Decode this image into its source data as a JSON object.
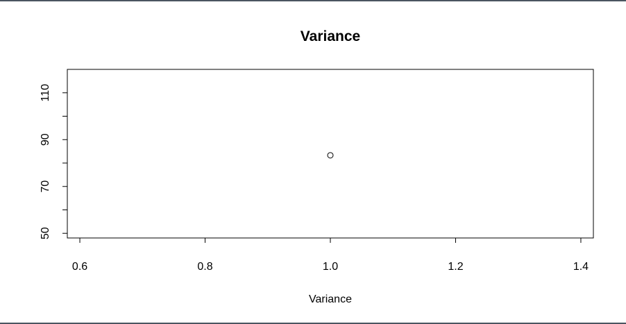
{
  "chart_data": {
    "type": "scatter",
    "title": "Variance",
    "xlabel": "Variance",
    "ylabel": "",
    "xlim": [
      0.58,
      1.42
    ],
    "ylim": [
      48,
      120
    ],
    "x_ticks": [
      0.6,
      0.8,
      1.0,
      1.2,
      1.4
    ],
    "x_tick_labels": [
      "0.6",
      "0.8",
      "1.0",
      "1.2",
      "1.4"
    ],
    "y_ticks": [
      50,
      60,
      70,
      80,
      90,
      100,
      110
    ],
    "y_tick_labels": [
      "50",
      "",
      "70",
      "",
      "90",
      "",
      "110"
    ],
    "series": [
      {
        "x": [
          1.0
        ],
        "y": [
          83.3
        ],
        "marker": "open-circle",
        "color": "#000000"
      }
    ],
    "grid": false,
    "legend": "none"
  }
}
